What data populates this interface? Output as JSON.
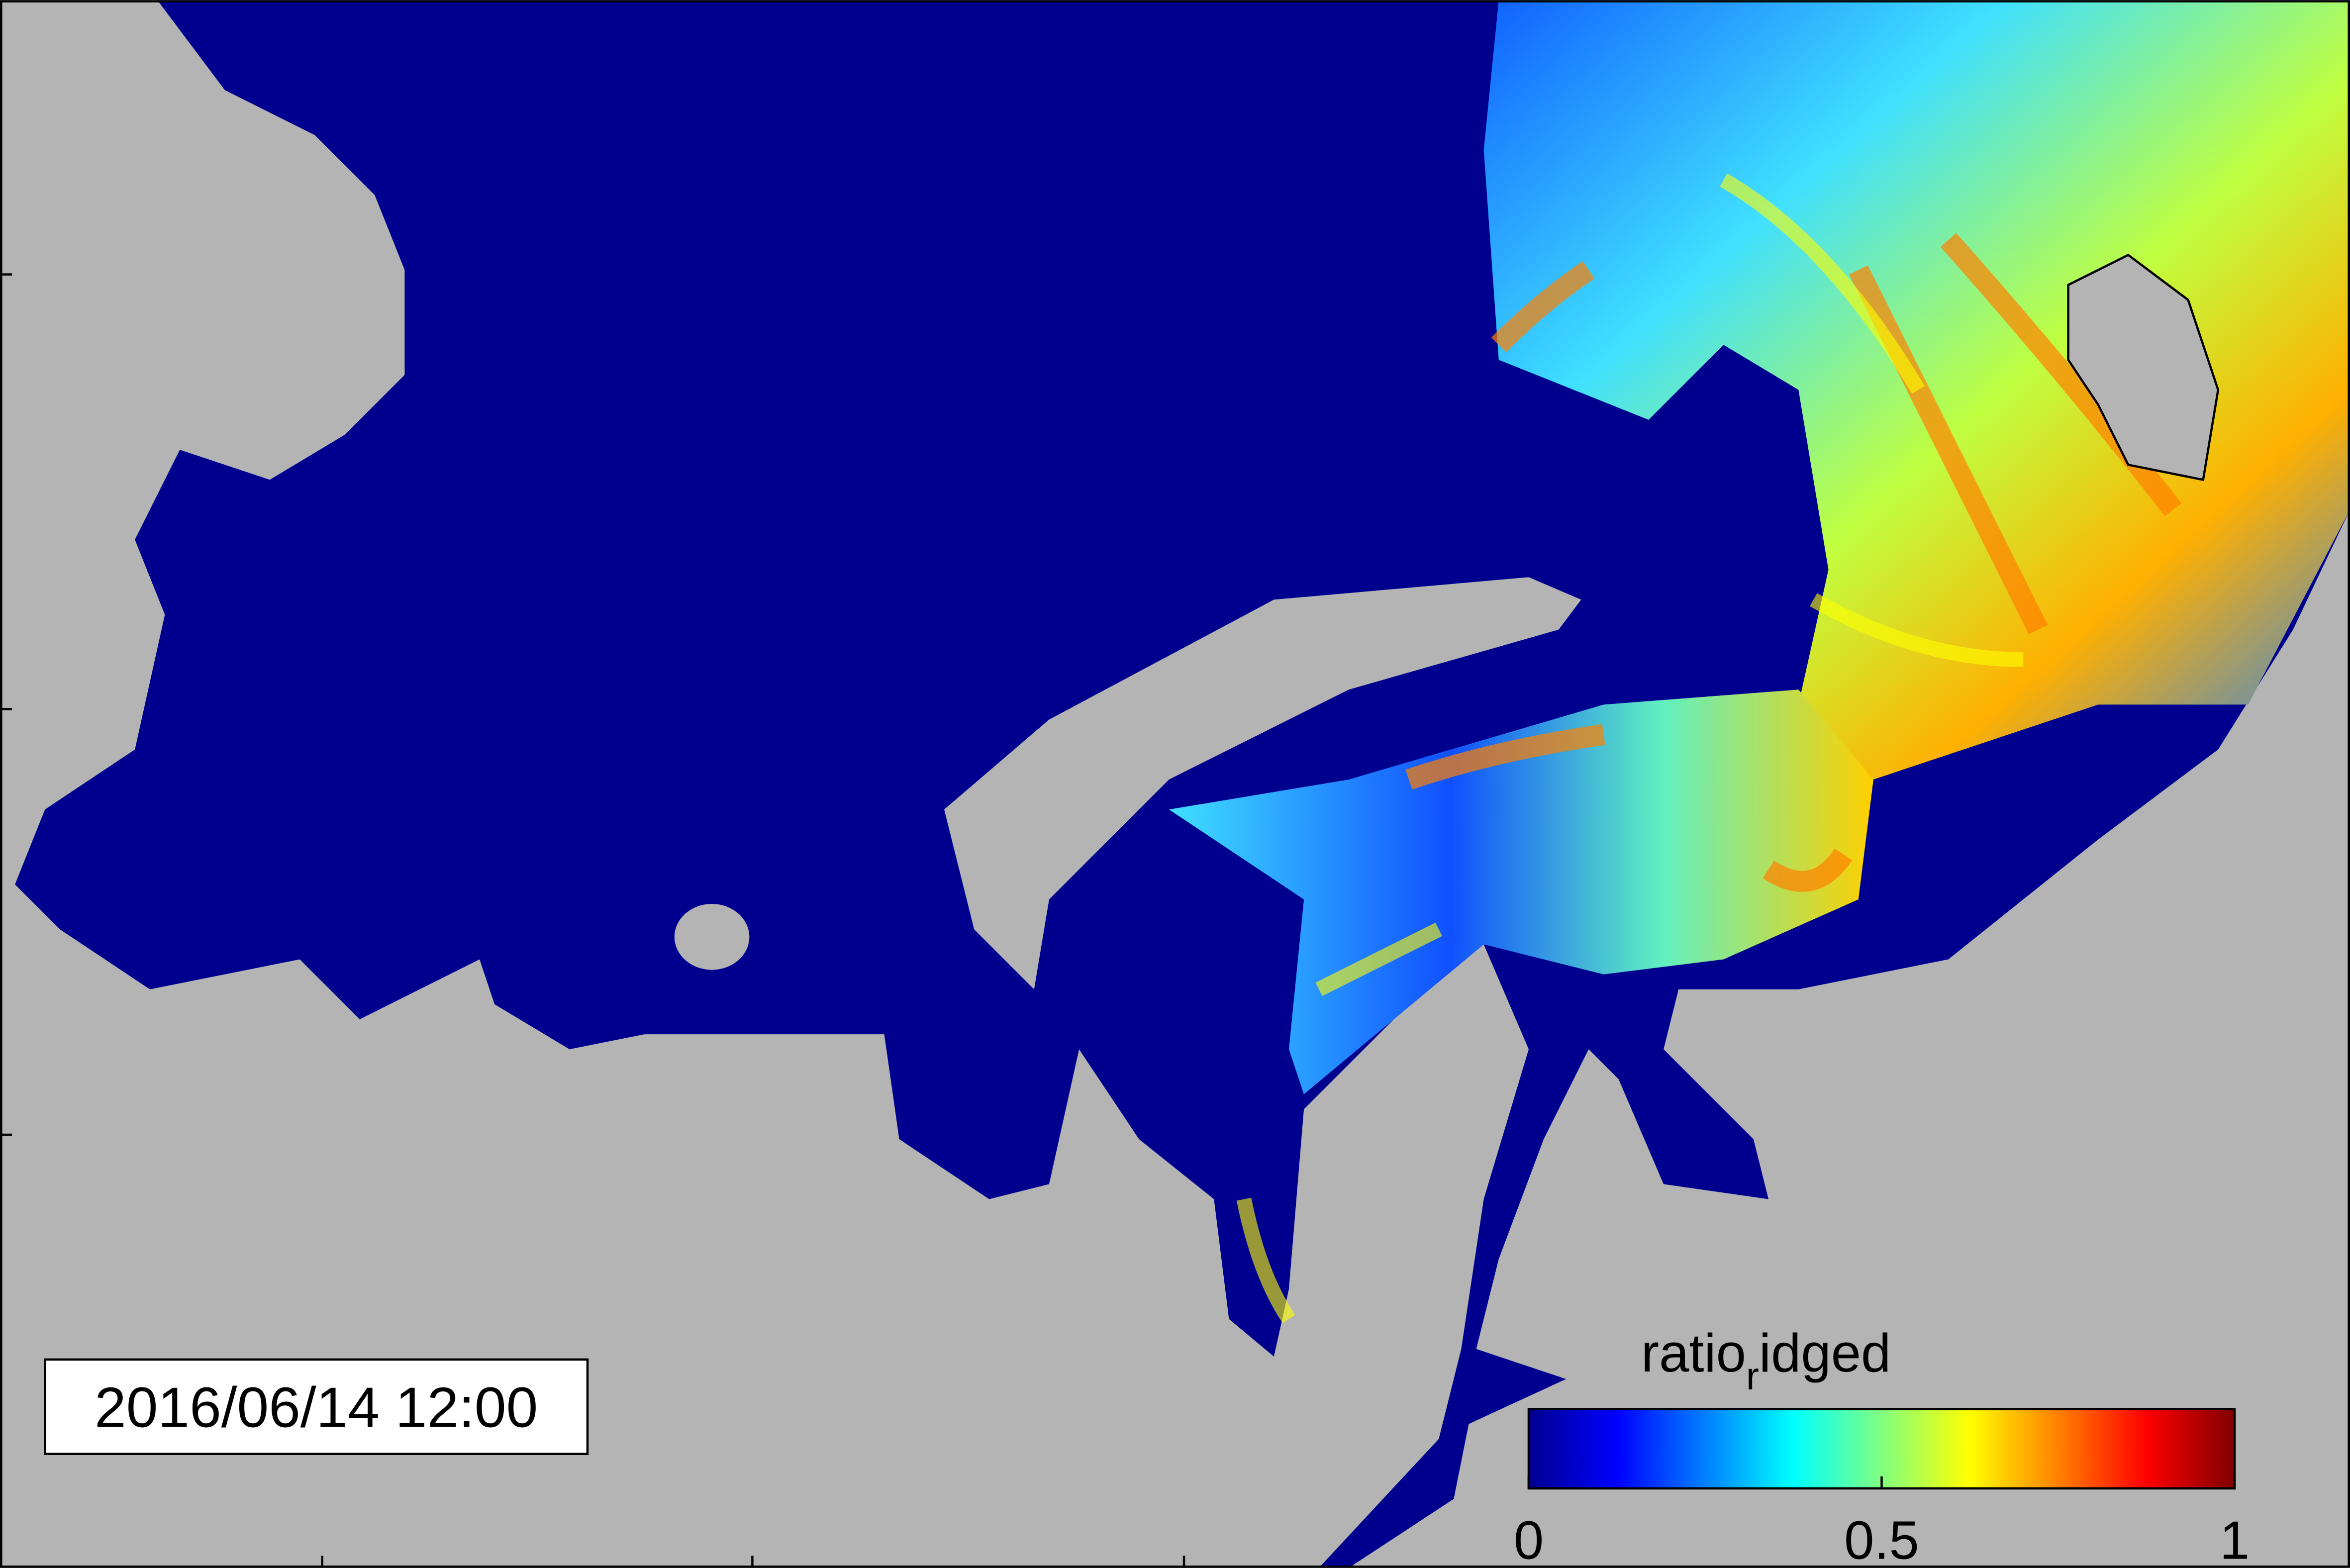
{
  "timestamp": "2016/06/14 12:00",
  "colorbar": {
    "label_parts": [
      "ratio",
      "r",
      "idged"
    ],
    "lim": [
      0,
      1
    ],
    "ticks": [
      0,
      0.5,
      1
    ],
    "colormap": [
      "#00008f",
      "#0000ff",
      "#0080ff",
      "#00ffff",
      "#80ff80",
      "#ffff00",
      "#ff8000",
      "#ff0000",
      "#800000"
    ]
  }
}
